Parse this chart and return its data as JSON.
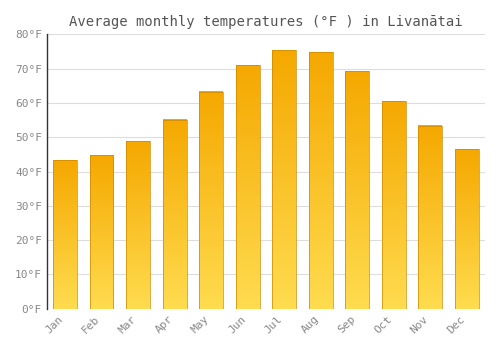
{
  "title": "Average monthly temperatures (°F ) in Livanātai",
  "months": [
    "Jan",
    "Feb",
    "Mar",
    "Apr",
    "May",
    "Jun",
    "Jul",
    "Aug",
    "Sep",
    "Oct",
    "Nov",
    "Dec"
  ],
  "values": [
    43.3,
    44.8,
    48.9,
    55.1,
    63.3,
    71.1,
    75.5,
    74.8,
    69.3,
    60.6,
    53.4,
    46.6
  ],
  "bar_color_bottom": "#F5A800",
  "bar_color_top": "#FFD966",
  "background_color": "#FFFFFF",
  "plot_bg_color": "#FFFFFF",
  "grid_color": "#DDDDDD",
  "text_color": "#888888",
  "title_color": "#555555",
  "ylim": [
    0,
    80
  ],
  "yticks": [
    0,
    10,
    20,
    30,
    40,
    50,
    60,
    70,
    80
  ],
  "ytick_labels": [
    "0°F",
    "10°F",
    "20°F",
    "30°F",
    "40°F",
    "50°F",
    "60°F",
    "70°F",
    "80°F"
  ],
  "title_fontsize": 10,
  "tick_fontsize": 8
}
